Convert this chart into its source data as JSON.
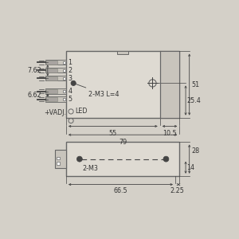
{
  "bg_color": "#d4d0c8",
  "line_color": "#666666",
  "dark_color": "#444444",
  "text_color": "#333333",
  "body_color": "#dedad2",
  "shadow_color": "#c8c4bc",
  "labels": {
    "dim_7_62": "7.62",
    "dim_6_62": "6.62",
    "dim_51": "51",
    "dim_25_4": "25.4",
    "dim_55": "55",
    "dim_10_5": "10.5",
    "dim_79": "79",
    "dim_28": "28",
    "dim_14": "14",
    "dim_66_5": "66.5",
    "dim_2_25": "2.25",
    "label_2m3_l4": "2-M3 L=4",
    "label_2m3": "2-M3",
    "label_vadj": "+VADJ.",
    "label_led": "LED"
  }
}
